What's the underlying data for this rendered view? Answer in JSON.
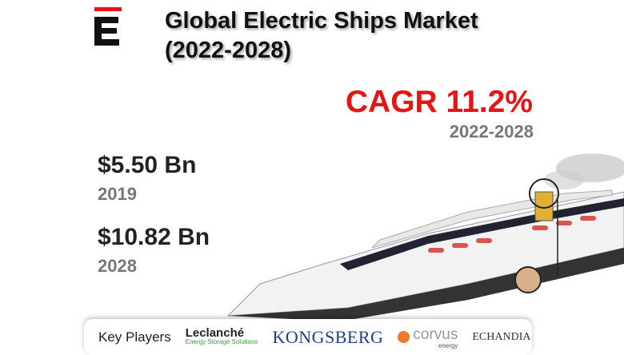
{
  "brand": {
    "logo_letter": "E",
    "accent": "#e81414"
  },
  "title": {
    "line1": "Global Electric Ships Market",
    "line2": "(2022-2028)"
  },
  "cagr": {
    "label": "CAGR 11.2%",
    "years": "2022-2028"
  },
  "stats": [
    {
      "value": "$5.50 Bn",
      "year": "2019"
    },
    {
      "value": "$10.82 Bn",
      "year": "2028"
    }
  ],
  "players": {
    "label": "Key Players",
    "items": [
      {
        "name": "Leclanché",
        "tagline": "Energy Storage Solutions"
      },
      {
        "name": "KONGSBERG"
      },
      {
        "name": "corvus",
        "tagline": "energy"
      },
      {
        "name": "ECHANDIA"
      }
    ]
  }
}
